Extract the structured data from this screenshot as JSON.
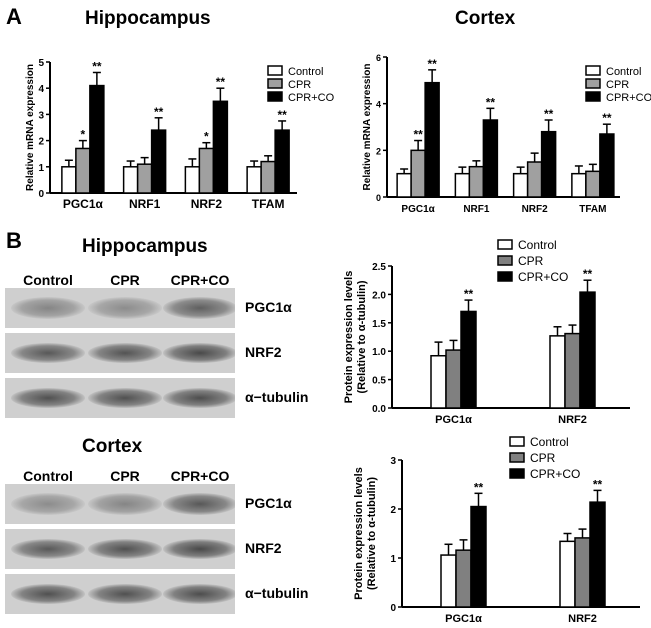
{
  "panels": {
    "a_letter": "A",
    "b_letter": "B",
    "blots": {
      "hippocampus_title": "Hippocampus",
      "cortex_title": "Cortex",
      "lanes": [
        "Control",
        "CPR",
        "CPR+CO"
      ],
      "rows": [
        "PGC1α",
        "NRF2",
        "α−tubulin"
      ],
      "hippocampus_intensity": [
        [
          0.45,
          0.4,
          0.7
        ],
        [
          0.75,
          0.78,
          0.85
        ],
        [
          0.8,
          0.8,
          0.82
        ]
      ],
      "cortex_intensity": [
        [
          0.4,
          0.45,
          0.75
        ],
        [
          0.75,
          0.8,
          0.85
        ],
        [
          0.8,
          0.8,
          0.82
        ]
      ]
    }
  },
  "colors": {
    "control": "#ffffff",
    "cpr": "#a0a0a0",
    "cpr_co": "#000000",
    "cpr_protein": "#808080"
  },
  "chart_data": [
    {
      "type": "bar",
      "title": "Hippocampus",
      "ylabel": "Relative mRNA expression",
      "ylim": [
        0,
        5
      ],
      "yticks": [
        "0",
        "1",
        "2",
        "3",
        "4",
        "5"
      ],
      "categories": [
        "PGC1α",
        "NRF1",
        "NRF2",
        "TFAM"
      ],
      "legend_position": "top-right",
      "series": [
        {
          "name": "Control",
          "values": [
            1.0,
            1.0,
            1.0,
            1.0
          ],
          "errors": [
            0.25,
            0.22,
            0.3,
            0.22
          ],
          "sig": [
            "",
            "",
            "",
            ""
          ]
        },
        {
          "name": "CPR",
          "values": [
            1.7,
            1.1,
            1.7,
            1.2
          ],
          "errors": [
            0.3,
            0.25,
            0.22,
            0.22
          ],
          "sig": [
            "*",
            "",
            "*",
            ""
          ]
        },
        {
          "name": "CPR+CO",
          "values": [
            4.1,
            2.4,
            3.5,
            2.4
          ],
          "errors": [
            0.5,
            0.47,
            0.5,
            0.35
          ],
          "sig": [
            "**",
            "**",
            "**",
            "**"
          ]
        }
      ]
    },
    {
      "type": "bar",
      "title": "Cortex",
      "ylabel": "Relative mRNA expression",
      "ylim": [
        0,
        6
      ],
      "yticks": [
        "0",
        "2",
        "4",
        "6"
      ],
      "categories": [
        "PGC1α",
        "NRF1",
        "NRF2",
        "TFAM"
      ],
      "legend_position": "top-right",
      "series": [
        {
          "name": "Control",
          "values": [
            1.0,
            1.0,
            1.0,
            1.0
          ],
          "errors": [
            0.2,
            0.28,
            0.28,
            0.33
          ],
          "sig": [
            "",
            "",
            "",
            ""
          ]
        },
        {
          "name": "CPR",
          "values": [
            2.0,
            1.3,
            1.5,
            1.1
          ],
          "errors": [
            0.42,
            0.25,
            0.38,
            0.3
          ],
          "sig": [
            "**",
            "",
            "",
            ""
          ]
        },
        {
          "name": "CPR+CO",
          "values": [
            4.9,
            3.3,
            2.8,
            2.7
          ],
          "errors": [
            0.55,
            0.5,
            0.5,
            0.42
          ],
          "sig": [
            "**",
            "**",
            "**",
            "**"
          ]
        }
      ]
    },
    {
      "type": "bar",
      "title": "",
      "ylabel": "Protein expression levels",
      "ylabel2": "(Relative to α-tubulin)",
      "ylim": [
        0,
        2.5
      ],
      "yticks": [
        "0.0",
        "0.5",
        "1.0",
        "1.5",
        "2.0",
        "2.5"
      ],
      "categories": [
        "PGC1α",
        "NRF2"
      ],
      "legend_position": "top",
      "series": [
        {
          "name": "Control",
          "values": [
            0.92,
            1.27
          ],
          "errors": [
            0.24,
            0.16
          ],
          "sig": [
            "",
            ""
          ]
        },
        {
          "name": "CPR",
          "values": [
            1.02,
            1.31
          ],
          "errors": [
            0.17,
            0.15
          ],
          "sig": [
            "",
            ""
          ]
        },
        {
          "name": "CPR+CO",
          "values": [
            1.7,
            2.04
          ],
          "errors": [
            0.2,
            0.21
          ],
          "sig": [
            "**",
            "**"
          ]
        }
      ]
    },
    {
      "type": "bar",
      "title": "",
      "ylabel": "Protein expression levels",
      "ylabel2": "(Relative to α-tubulin)",
      "ylim": [
        0,
        3
      ],
      "yticks": [
        "0",
        "1",
        "2",
        "3"
      ],
      "categories": [
        "PGC1α",
        "NRF2"
      ],
      "legend_position": "top",
      "series": [
        {
          "name": "Control",
          "values": [
            1.06,
            1.34
          ],
          "errors": [
            0.22,
            0.16
          ],
          "sig": [
            "",
            ""
          ]
        },
        {
          "name": "CPR",
          "values": [
            1.16,
            1.41
          ],
          "errors": [
            0.21,
            0.18
          ],
          "sig": [
            "",
            ""
          ]
        },
        {
          "name": "CPR+CO",
          "values": [
            2.05,
            2.14
          ],
          "errors": [
            0.27,
            0.24
          ],
          "sig": [
            "**",
            "**"
          ]
        }
      ]
    }
  ]
}
